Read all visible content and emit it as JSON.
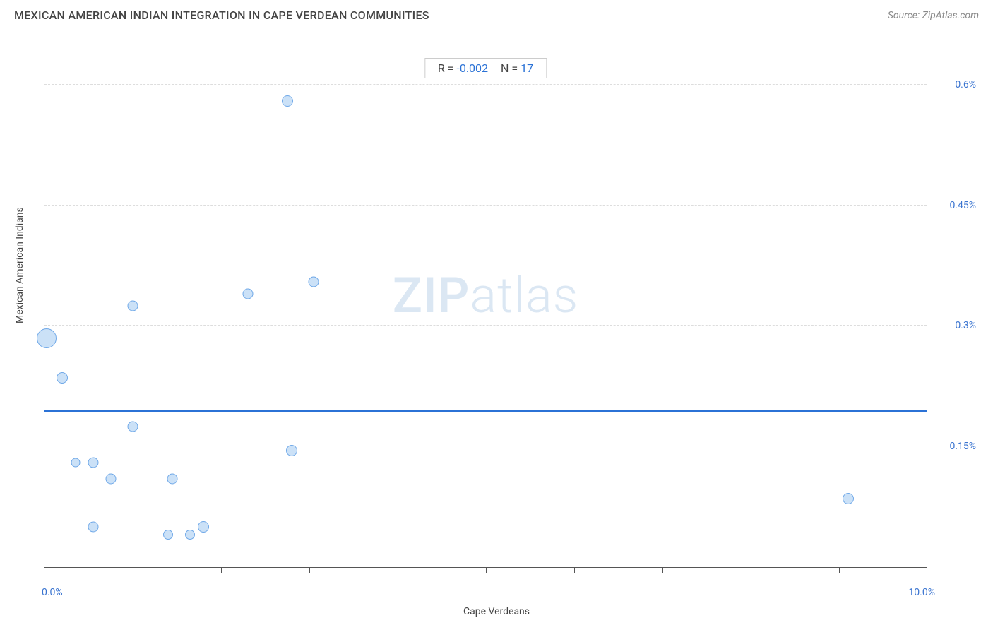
{
  "header": {
    "title": "MEXICAN AMERICAN INDIAN INTEGRATION IN CAPE VERDEAN COMMUNITIES",
    "source_prefix": "Source: ",
    "source_name": "ZipAtlas.com"
  },
  "watermark": {
    "part1": "ZIP",
    "part2": "atlas"
  },
  "stats": {
    "r_label": "R = ",
    "r_value": "-0.002",
    "n_label": "N = ",
    "n_value": "17"
  },
  "chart": {
    "type": "scatter",
    "x_label": "Cape Verdeans",
    "y_label": "Mexican American Indians",
    "xlim": [
      0.0,
      10.0
    ],
    "ylim": [
      0.0,
      0.65
    ],
    "x_tick_labels": [
      {
        "value": 0.0,
        "text": "0.0%"
      },
      {
        "value": 10.0,
        "text": "10.0%"
      }
    ],
    "y_tick_labels": [
      {
        "value": 0.15,
        "text": "0.15%"
      },
      {
        "value": 0.3,
        "text": "0.3%"
      },
      {
        "value": 0.45,
        "text": "0.45%"
      },
      {
        "value": 0.6,
        "text": "0.6%"
      }
    ],
    "y_gridlines": [
      0.15,
      0.3,
      0.45,
      0.6,
      0.65
    ],
    "x_ticks_minor": [
      1.0,
      2.0,
      3.0,
      4.0,
      5.0,
      6.0,
      7.0,
      8.0,
      9.0
    ],
    "grid_color": "#dddddd",
    "axis_color": "#555555",
    "background_color": "#ffffff",
    "trend_line_y": 0.195,
    "trend_line_color": "#2b72d6",
    "trend_line_width": 3,
    "point_fill": "rgba(160,200,240,0.55)",
    "point_stroke": "#6fa8e8",
    "points": [
      {
        "x": 0.02,
        "y": 0.285,
        "size": 28
      },
      {
        "x": 0.2,
        "y": 0.235,
        "size": 16
      },
      {
        "x": 0.35,
        "y": 0.13,
        "size": 13
      },
      {
        "x": 0.55,
        "y": 0.13,
        "size": 15
      },
      {
        "x": 0.55,
        "y": 0.05,
        "size": 15
      },
      {
        "x": 0.75,
        "y": 0.11,
        "size": 15
      },
      {
        "x": 1.0,
        "y": 0.175,
        "size": 15
      },
      {
        "x": 1.0,
        "y": 0.325,
        "size": 15
      },
      {
        "x": 1.4,
        "y": 0.04,
        "size": 14
      },
      {
        "x": 1.45,
        "y": 0.11,
        "size": 15
      },
      {
        "x": 1.65,
        "y": 0.04,
        "size": 14
      },
      {
        "x": 1.8,
        "y": 0.05,
        "size": 16
      },
      {
        "x": 2.3,
        "y": 0.34,
        "size": 15
      },
      {
        "x": 2.75,
        "y": 0.58,
        "size": 16
      },
      {
        "x": 2.8,
        "y": 0.145,
        "size": 16
      },
      {
        "x": 3.05,
        "y": 0.355,
        "size": 15
      },
      {
        "x": 9.1,
        "y": 0.085,
        "size": 16
      }
    ]
  }
}
